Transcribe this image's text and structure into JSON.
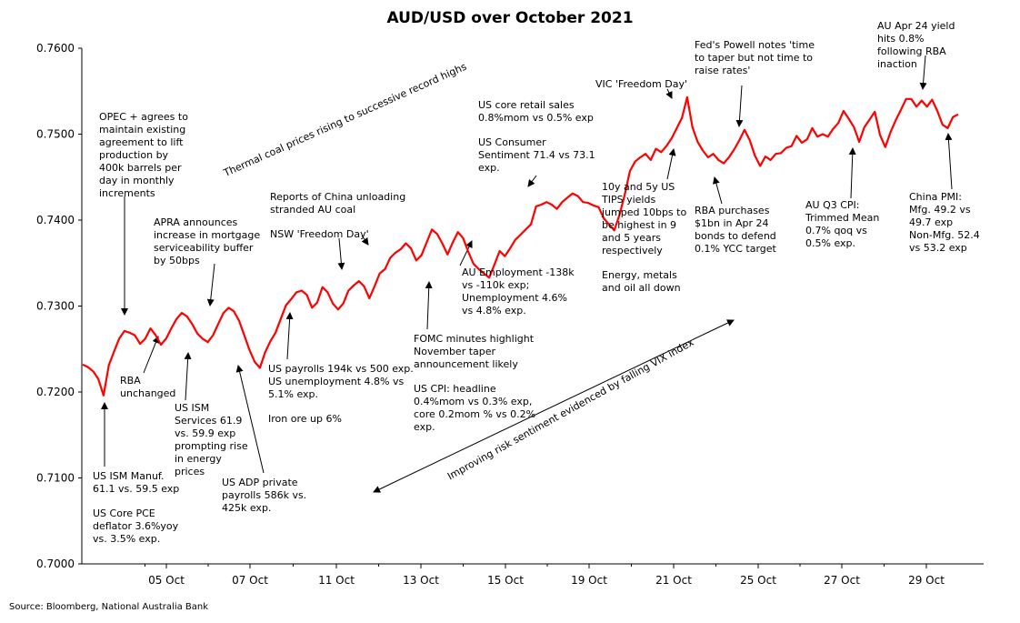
{
  "chart_data": {
    "type": "line",
    "title": "AUD/USD over October 2021",
    "source": "Source: Bloomberg, National Australia Bank",
    "ylim": [
      0.7,
      0.76
    ],
    "yticks": [
      "0.7000",
      "0.7100",
      "0.7200",
      "0.7300",
      "0.7400",
      "0.7500",
      "0.7600"
    ],
    "xticks": [
      "05 Oct",
      "07 Oct",
      "11 Oct",
      "13 Oct",
      "15 Oct",
      "19 Oct",
      "21 Oct",
      "25 Oct",
      "27 Oct",
      "29 Oct"
    ],
    "grid": false,
    "legend": "none",
    "line_color": "#ff0000",
    "series": [
      {
        "values": [
          0.7232,
          0.7229,
          0.7224,
          0.7215,
          0.7196,
          0.7231,
          0.7247,
          0.7262,
          0.7271,
          0.7269,
          0.7266,
          0.7256,
          0.7262,
          0.7274,
          0.7266,
          0.7255,
          0.7262,
          0.7274,
          0.7285,
          0.7292,
          0.7288,
          0.7279,
          0.7268,
          0.7262,
          0.7258,
          0.7266,
          0.7279,
          0.7292,
          0.7298,
          0.7294,
          0.7283,
          0.7266,
          0.7249,
          0.7235,
          0.7228,
          0.7246,
          0.7259,
          0.7269,
          0.7285,
          0.7301,
          0.7308,
          0.7316,
          0.7318,
          0.7313,
          0.7298,
          0.7304,
          0.7322,
          0.7316,
          0.7303,
          0.7296,
          0.7303,
          0.7318,
          0.7324,
          0.7329,
          0.7323,
          0.7309,
          0.7323,
          0.7338,
          0.7343,
          0.7356,
          0.7362,
          0.7366,
          0.7373,
          0.7367,
          0.7353,
          0.7359,
          0.7374,
          0.7389,
          0.7384,
          0.7373,
          0.736,
          0.7374,
          0.7386,
          0.7379,
          0.7363,
          0.7349,
          0.7343,
          0.7338,
          0.7333,
          0.7348,
          0.7364,
          0.7358,
          0.7367,
          0.7377,
          0.7383,
          0.7389,
          0.7395,
          0.7416,
          0.7418,
          0.7421,
          0.7418,
          0.7413,
          0.7421,
          0.7426,
          0.7431,
          0.7428,
          0.7421,
          0.742,
          0.7417,
          0.7415,
          0.7402,
          0.7395,
          0.7388,
          0.7406,
          0.7429,
          0.7457,
          0.7468,
          0.7473,
          0.7477,
          0.747,
          0.7483,
          0.7479,
          0.7486,
          0.7495,
          0.7507,
          0.7519,
          0.7543,
          0.7508,
          0.7491,
          0.7481,
          0.7473,
          0.7477,
          0.747,
          0.7466,
          0.7473,
          0.7482,
          0.7493,
          0.7505,
          0.7493,
          0.7475,
          0.7463,
          0.7474,
          0.747,
          0.7477,
          0.7478,
          0.7484,
          0.7486,
          0.7498,
          0.749,
          0.7494,
          0.7507,
          0.7497,
          0.75,
          0.7497,
          0.7506,
          0.7513,
          0.7527,
          0.7518,
          0.7508,
          0.7491,
          0.7508,
          0.7517,
          0.7526,
          0.7499,
          0.7485,
          0.7502,
          0.7516,
          0.7528,
          0.7541,
          0.7541,
          0.7532,
          0.7539,
          0.7532,
          0.754,
          0.7527,
          0.7511,
          0.7507,
          0.752,
          0.7523
        ]
      }
    ]
  },
  "annotations": {
    "ism_manuf": "US ISM Manuf.\n61.1 vs. 59.5 exp",
    "core_pce": "US Core PCE\ndeflator 3.6%yoy\nvs. 3.5% exp.",
    "opec": "OPEC + agrees to\nmaintain existing\nagreement to lift\nproduction by\n400k barrels per\nday in monthly\nincrements",
    "rba": "RBA\nunchanged",
    "apra": "APRA announces\nincrease in mortgage\nserviceability buffer\nby 50bps",
    "ism_services": "US ISM\nServices 61.9\nvs. 59.9 exp\nprompting rise\nin energy\nprices",
    "adp": "US ADP private\npayrolls 586k vs.\n425k exp.",
    "payrolls": "US payrolls 194k vs 500 exp.\nUS unemployment 4.8% vs\n5.1% exp.",
    "iron_ore": "Iron ore up 6%",
    "china_coal": "Reports of China unloading\nstranded AU coal",
    "nsw": "NSW 'Freedom Day'",
    "thermal_coal": "Thermal coal prices rising to successive record highs",
    "fomc": "FOMC minutes highlight\nNovember taper\nannouncement likely",
    "us_cpi": "US CPI: headline\n0.4%mom vs 0.3% exp,\ncore 0.2mom % vs 0.2%\nexp.",
    "au_employment": "AU Employment -138k\nvs -110k exp;\nUnemployment 4.6%\nvs 4.8% exp.",
    "retail_sales": "US core retail sales\n0.8%mom vs 0.5% exp",
    "consumer_sentiment": "US Consumer\nSentiment 71.4 vs 73.1\nexp.",
    "tips": "10y and 5y US\nTIPS yields\njumped 10bps to\nbe highest in 9\nand 5 years\nrespectively",
    "energy": "Energy, metals\nand oil all down",
    "vic": "VIC 'Freedom Day'",
    "powell": "Fed's Powell notes 'time\nto taper but not time to\nraise rates'",
    "rba_purchases": "RBA purchases\n$1bn in Apr 24\nbonds to defend\n0.1% YCC target",
    "au_q3_cpi": "AU Q3 CPI:\nTrimmed Mean\n0.7% qoq vs\n0.5% exp.",
    "au_apr24": "AU Apr 24 yield\nhits 0.8%\nfollowing RBA\ninaction",
    "china_pmi": "China PMI:\nMfg. 49.2 vs\n49.7 exp\nNon-Mfg. 52.4\nvs 53.2 exp",
    "vix": "Improving risk sentiment evidenced by falling VIX index"
  }
}
